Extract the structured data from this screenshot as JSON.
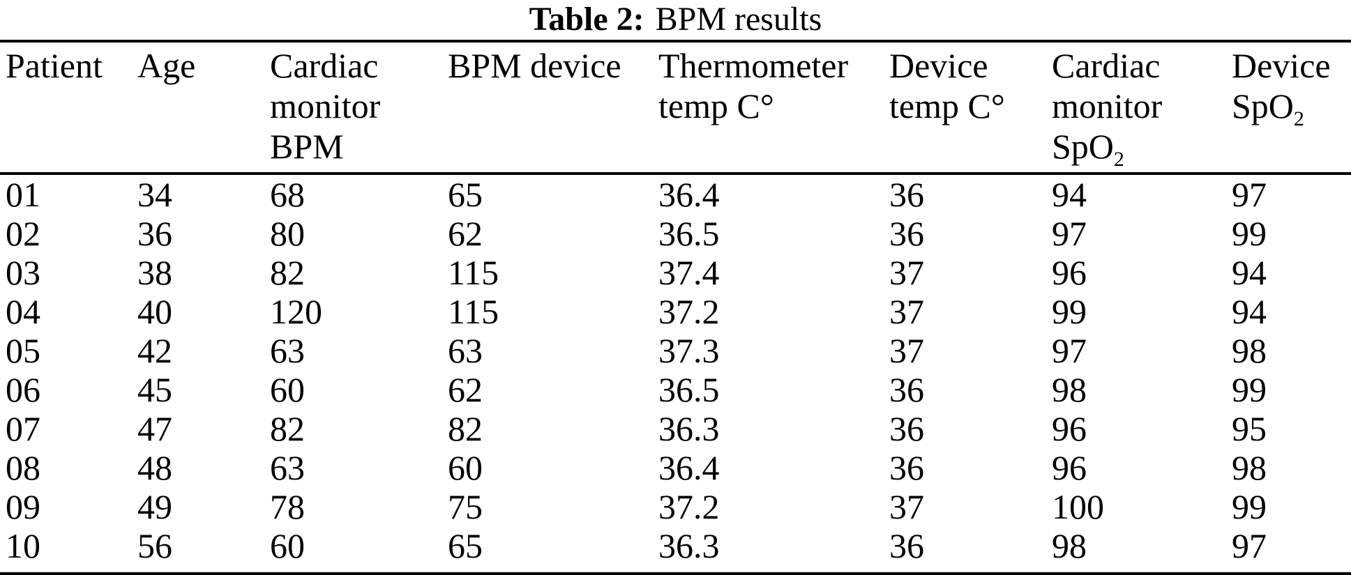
{
  "title": {
    "label": "Table 2:",
    "text": "BPM results"
  },
  "colors": {
    "text": "#000000",
    "background": "#ffffff",
    "rule": "#000000"
  },
  "table": {
    "columns": [
      {
        "id": "patient",
        "lines": [
          {
            "t": "Patient"
          }
        ]
      },
      {
        "id": "age",
        "lines": [
          {
            "t": "Age"
          }
        ]
      },
      {
        "id": "cardiac-monitor-bpm",
        "lines": [
          {
            "t": "Cardiac"
          },
          {
            "t": "monitor"
          },
          {
            "t": "BPM"
          }
        ]
      },
      {
        "id": "bpm-device",
        "lines": [
          {
            "t": "BPM device"
          }
        ]
      },
      {
        "id": "thermometer-temp-c",
        "lines": [
          {
            "t": "Thermometer"
          },
          {
            "t": "temp C°"
          }
        ]
      },
      {
        "id": "device-temp-c",
        "lines": [
          {
            "t": "Device"
          },
          {
            "t": "temp C°"
          }
        ]
      },
      {
        "id": "cardiac-monitor-spo2",
        "lines": [
          {
            "t": "Cardiac"
          },
          {
            "t": "monitor"
          },
          {
            "t": "SpO",
            "sub": "2"
          }
        ]
      },
      {
        "id": "device-spo2",
        "lines": [
          {
            "t": "Device"
          },
          {
            "t": "SpO",
            "sub": "2"
          }
        ]
      }
    ],
    "rows": [
      [
        "01",
        "34",
        "68",
        "65",
        "36.4",
        "36",
        "94",
        "97"
      ],
      [
        "02",
        "36",
        "80",
        "62",
        "36.5",
        "36",
        "97",
        "99"
      ],
      [
        "03",
        "38",
        "82",
        "115",
        "37.4",
        "37",
        "96",
        "94"
      ],
      [
        "04",
        "40",
        "120",
        "115",
        "37.2",
        "37",
        "99",
        "94"
      ],
      [
        "05",
        "42",
        "63",
        "63",
        "37.3",
        "37",
        "97",
        "98"
      ],
      [
        "06",
        "45",
        "60",
        "62",
        "36.5",
        "36",
        "98",
        "99"
      ],
      [
        "07",
        "47",
        "82",
        "82",
        "36.3",
        "36",
        "96",
        "95"
      ],
      [
        "08",
        "48",
        "63",
        "60",
        "36.4",
        "36",
        "96",
        "98"
      ],
      [
        "09",
        "49",
        "78",
        "75",
        "37.2",
        "37",
        "100",
        "99"
      ],
      [
        "10",
        "56",
        "60",
        "65",
        "36.3",
        "36",
        "98",
        "97"
      ]
    ]
  }
}
